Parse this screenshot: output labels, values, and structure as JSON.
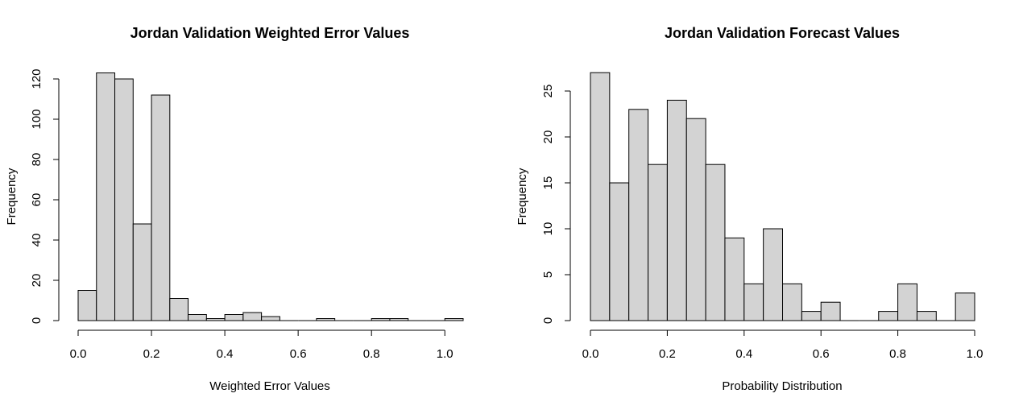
{
  "chart_data": [
    {
      "type": "bar",
      "subtype": "histogram",
      "title": "Jordan Validation Weighted Error Values",
      "xlabel": "Weighted Error Values",
      "ylabel": "Frequency",
      "bin_width": 0.05,
      "bin_start": 0.0,
      "values": [
        15,
        123,
        120,
        48,
        112,
        11,
        3,
        1,
        3,
        4,
        2,
        0,
        0,
        1,
        0,
        0,
        1,
        1,
        0,
        0,
        1
      ],
      "xlim": [
        0.0,
        1.05
      ],
      "ylim": [
        0,
        120
      ],
      "xticks": [
        "0.0",
        "0.2",
        "0.4",
        "0.6",
        "0.8",
        "1.0"
      ],
      "yticks": [
        "0",
        "20",
        "40",
        "60",
        "80",
        "100",
        "120"
      ],
      "bar_color": "#d3d3d3",
      "grid": false
    },
    {
      "type": "bar",
      "subtype": "histogram",
      "title": "Jordan Validation Forecast Values",
      "xlabel": "Probability Distribution",
      "ylabel": "Frequency",
      "bin_width": 0.05,
      "bin_start": 0.0,
      "values": [
        27,
        15,
        23,
        17,
        24,
        22,
        17,
        9,
        4,
        10,
        4,
        1,
        2,
        0,
        0,
        1,
        4,
        1,
        0,
        3
      ],
      "xlim": [
        0.0,
        1.0
      ],
      "ylim": [
        0,
        25
      ],
      "xticks": [
        "0.0",
        "0.2",
        "0.4",
        "0.6",
        "0.8",
        "1.0"
      ],
      "yticks": [
        "0",
        "5",
        "10",
        "15",
        "20",
        "25"
      ],
      "bar_color": "#d3d3d3",
      "grid": false
    }
  ]
}
